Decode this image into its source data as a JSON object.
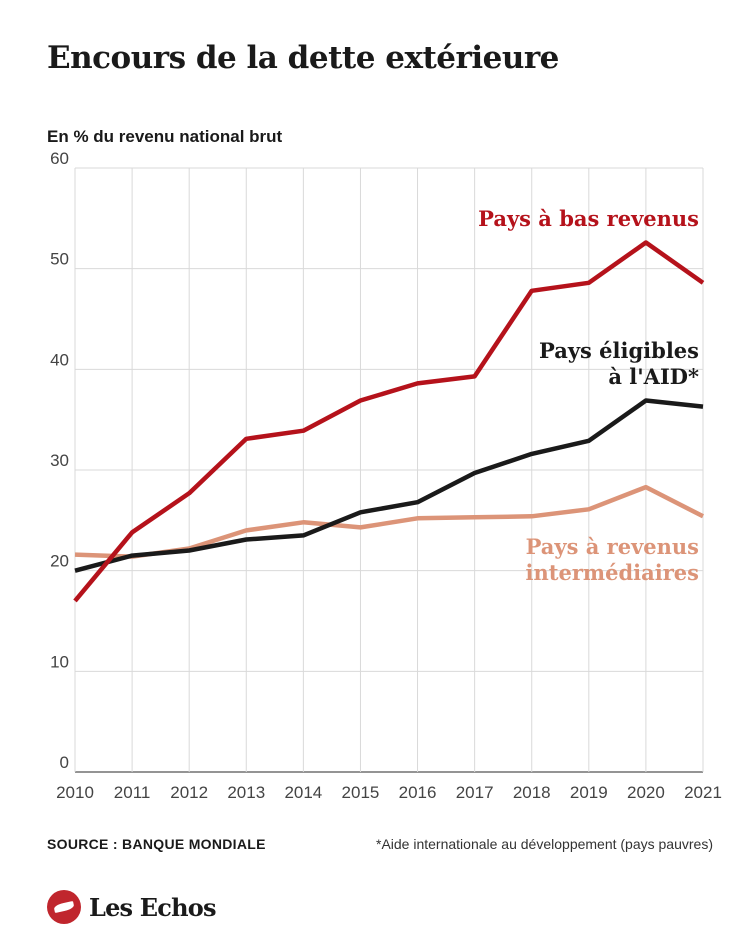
{
  "header": {
    "title": "Encours de la dette extérieure",
    "subtitle": "En % du revenu national brut"
  },
  "footer": {
    "source": "SOURCE : BANQUE MONDIALE",
    "footnote": "*Aide internationale au développement (pays pauvres)"
  },
  "brand": {
    "name": "Les Echos",
    "color": "#c0262d"
  },
  "chart_data": {
    "type": "line",
    "title": "Encours de la dette extérieure",
    "subtitle": "En % du revenu national brut",
    "xlabel": "",
    "ylabel": "",
    "x": [
      "2010",
      "2011",
      "2012",
      "2013",
      "2014",
      "2015",
      "2016",
      "2017",
      "2018",
      "2019",
      "2020",
      "2021"
    ],
    "ylim": [
      0,
      60
    ],
    "yticks": [
      0,
      10,
      20,
      30,
      40,
      50,
      60
    ],
    "grid": true,
    "legend": "direct labels",
    "series": [
      {
        "name": "Pays à bas revenus",
        "color": "#b5121b",
        "label_lines": [
          "Pays à bas revenus"
        ],
        "values": [
          17.0,
          23.8,
          27.7,
          33.1,
          33.9,
          36.9,
          38.6,
          39.3,
          47.8,
          48.6,
          52.6,
          48.6
        ]
      },
      {
        "name": "Pays éligibles à l'AID*",
        "color": "#1a1a1a",
        "label_lines": [
          "Pays éligibles",
          "à l'AID*"
        ],
        "values": [
          20.0,
          21.5,
          22.0,
          23.1,
          23.5,
          25.8,
          26.8,
          29.7,
          31.6,
          32.9,
          36.9,
          36.3
        ]
      },
      {
        "name": "Pays à revenus intermédiaires",
        "color": "#dc9478",
        "label_lines": [
          "Pays à revenus",
          "intermédiaires"
        ],
        "values": [
          21.6,
          21.4,
          22.2,
          24.0,
          24.8,
          24.3,
          25.2,
          25.3,
          25.4,
          26.1,
          28.3,
          25.4
        ]
      }
    ]
  }
}
